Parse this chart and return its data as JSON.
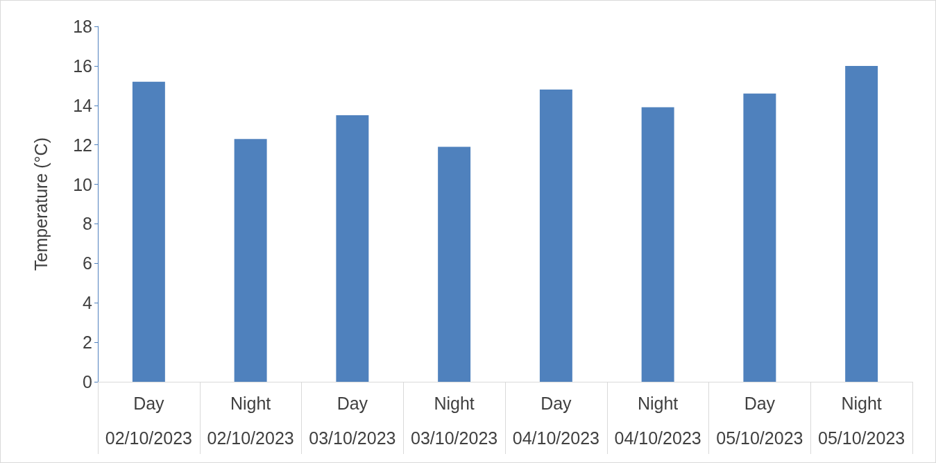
{
  "chart_data": {
    "type": "bar",
    "ylabel": "Temperature (°C)",
    "categories": [
      "Day\n02/10/2023",
      "Night\n02/10/2023",
      "Day\n03/10/2023",
      "Night\n03/10/2023",
      "Day\n04/10/2023",
      "Night\n04/10/2023",
      "Day\n05/10/2023",
      "Night\n05/10/2023"
    ],
    "values": [
      15.2,
      12.3,
      13.5,
      11.9,
      14.8,
      13.9,
      14.6,
      16.0
    ],
    "color": "#4f81bd",
    "ylim": [
      0,
      18
    ],
    "yticks": [
      0,
      2,
      4,
      6,
      8,
      10,
      12,
      14,
      16,
      18
    ],
    "grid": false
  }
}
